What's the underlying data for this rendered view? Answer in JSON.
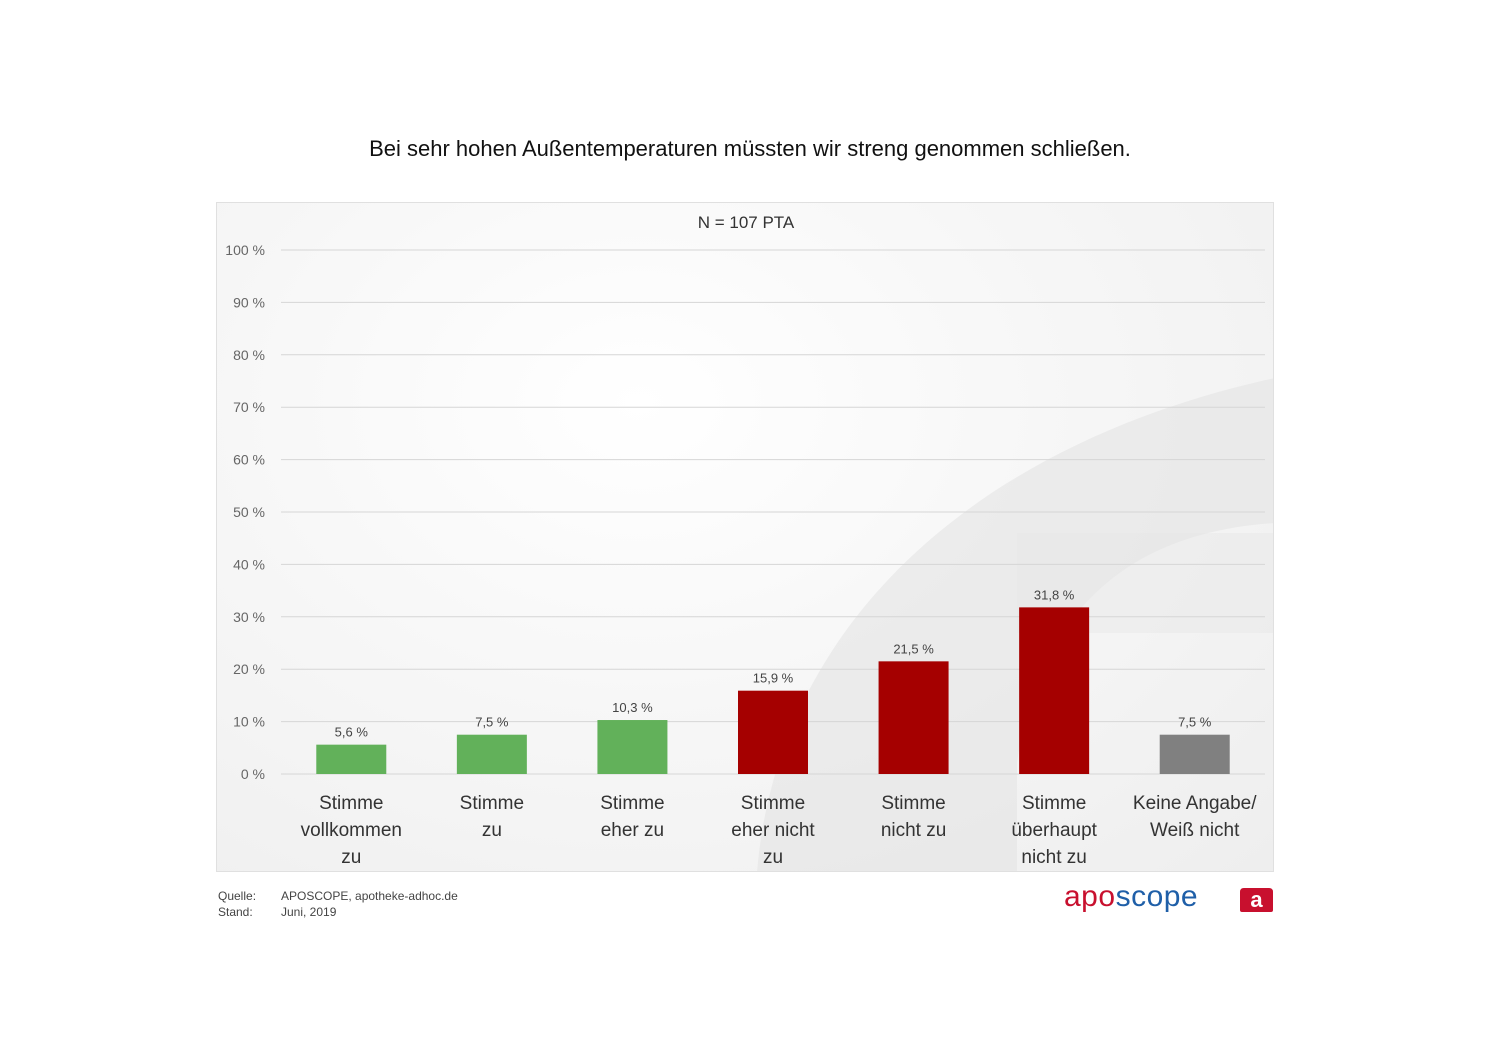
{
  "title": "Bei sehr hohen Außentemperaturen müssten wir streng genommen schließen.",
  "chart_data": {
    "type": "bar",
    "subtitle": "N = 107 PTA",
    "categories": [
      [
        "Stimme",
        "vollkommen",
        "zu"
      ],
      [
        "Stimme",
        "zu"
      ],
      [
        "Stimme",
        "eher zu"
      ],
      [
        "Stimme",
        "eher nicht",
        "zu"
      ],
      [
        "Stimme",
        "nicht zu"
      ],
      [
        "Stimme",
        "überhaupt",
        "nicht zu"
      ],
      [
        "Keine Angabe/",
        "Weiß nicht"
      ]
    ],
    "values": [
      5.6,
      7.5,
      10.3,
      15.9,
      21.5,
      31.8,
      7.5
    ],
    "value_labels": [
      "5,6 %",
      "7,5 %",
      "10,3 %",
      "15,9 %",
      "21,5 %",
      "31,8 %",
      "7,5 %"
    ],
    "bar_colors": [
      "#62b15a",
      "#62b15a",
      "#62b15a",
      "#a50000",
      "#a50000",
      "#a50000",
      "#808080"
    ],
    "ylim": [
      0,
      100
    ],
    "yticks": [
      0,
      10,
      20,
      30,
      40,
      50,
      60,
      70,
      80,
      90,
      100
    ],
    "ytick_labels": [
      "0 %",
      "10 %",
      "20 %",
      "30 %",
      "40 %",
      "50 %",
      "60 %",
      "70 %",
      "80 %",
      "90 %",
      "100 %"
    ],
    "grid": true
  },
  "footer": {
    "source_label": "Quelle:",
    "source_value": "APOSCOPE, apotheke-adhoc.de",
    "date_label": "Stand:",
    "date_value": "Juni, 2019"
  },
  "logo": {
    "word_part1": "apo",
    "word_part2": "scope",
    "badge_letter": "a",
    "brand_red": "#c8102e",
    "brand_blue": "#1f5fa8"
  }
}
